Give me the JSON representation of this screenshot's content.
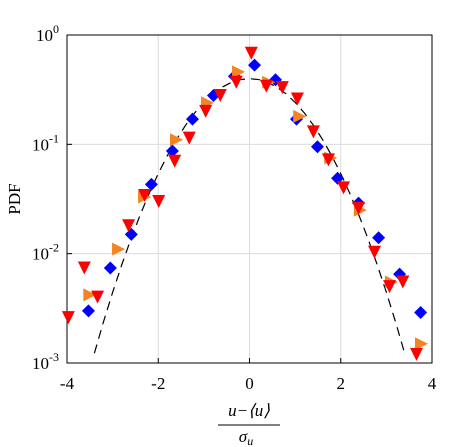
{
  "chart_data": {
    "type": "scatter",
    "ylabel": "PDF",
    "xlabel": {
      "numerator": "u−⟨u⟩",
      "denominator": "σ",
      "denominator_sub": "u"
    },
    "xlim": [
      -4,
      4
    ],
    "xticks": [
      -4,
      -2,
      0,
      2,
      4
    ],
    "ylim": [
      0.001,
      1
    ],
    "log_y": true,
    "grid": true,
    "yticks": [
      {
        "value": 0.001,
        "label": "10",
        "exponent": "-3"
      },
      {
        "value": 0.01,
        "label": "10",
        "exponent": "-2"
      },
      {
        "value": 0.1,
        "label": "10",
        "exponent": "-1"
      },
      {
        "value": 1,
        "label": "10",
        "exponent": "0"
      }
    ],
    "series": [
      {
        "color": "#000000",
        "style": "dashed-line",
        "x": [
          -3.4,
          -3.2,
          -3.0,
          -2.8,
          -2.6,
          -2.4,
          -2.2,
          -2.0,
          -1.8,
          -1.6,
          -1.4,
          -1.2,
          -1.0,
          -0.8,
          -0.6,
          -0.4,
          -0.2,
          0,
          0.2,
          0.4,
          0.6,
          0.8,
          1.0,
          1.2,
          1.4,
          1.6,
          1.8,
          2.0,
          2.2,
          2.4,
          2.6,
          2.8,
          3.0,
          3.2,
          3.4
        ],
        "values": [
          0.00123,
          0.00238,
          0.00443,
          0.0079,
          0.0136,
          0.0224,
          0.0355,
          0.054,
          0.079,
          0.1109,
          0.1497,
          0.1942,
          0.242,
          0.2897,
          0.3332,
          0.3683,
          0.391,
          0.3989,
          0.391,
          0.3683,
          0.3332,
          0.2897,
          0.242,
          0.1942,
          0.1497,
          0.1109,
          0.079,
          0.054,
          0.0355,
          0.0224,
          0.0136,
          0.0079,
          0.00443,
          0.00238,
          0.00123
        ]
      },
      {
        "color": "#0000ff",
        "marker": "diamond",
        "x": [
          -3.53,
          -3.05,
          -2.59,
          -2.15,
          -1.69,
          -1.25,
          -0.79,
          -0.33,
          0.11,
          0.57,
          1.03,
          1.49,
          1.93,
          2.39,
          2.83,
          3.29,
          3.75
        ],
        "values": [
          0.003,
          0.0074,
          0.015,
          0.043,
          0.087,
          0.17,
          0.28,
          0.42,
          0.53,
          0.39,
          0.17,
          0.095,
          0.049,
          0.029,
          0.014,
          0.0065,
          0.0029
        ]
      },
      {
        "color": "#f28522",
        "marker": "triangle-right",
        "x": [
          -3.5,
          -2.87,
          -2.3,
          -1.6,
          -0.92,
          -0.24,
          0.42,
          1.1,
          1.78,
          2.43,
          3.11,
          3.77
        ],
        "values": [
          0.0042,
          0.011,
          0.033,
          0.11,
          0.24,
          0.46,
          0.37,
          0.18,
          0.075,
          0.025,
          0.0055,
          0.0015
        ]
      },
      {
        "color": "#ff0000",
        "marker": "triangle-down",
        "x": [
          -3.97,
          -3.62,
          -3.33,
          -2.65,
          -2.3,
          -1.99,
          -1.64,
          -1.32,
          -0.96,
          -0.64,
          -0.29,
          0.04,
          0.37,
          0.72,
          1.05,
          1.4,
          1.73,
          2.06,
          2.39,
          2.74,
          3.07,
          3.36,
          3.66
        ],
        "values": [
          0.0026,
          0.0074,
          0.004,
          0.018,
          0.034,
          0.03,
          0.07,
          0.114,
          0.2,
          0.28,
          0.37,
          0.68,
          0.34,
          0.33,
          0.26,
          0.13,
          0.072,
          0.04,
          0.026,
          0.0103,
          0.005,
          0.0055,
          0.0012
        ]
      }
    ]
  }
}
